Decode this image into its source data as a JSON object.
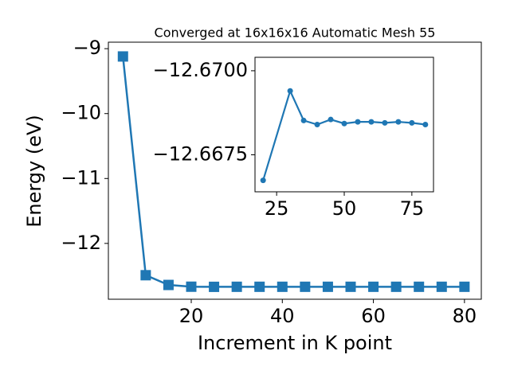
{
  "chart_data": [
    {
      "type": "line",
      "title": "Converged at 16x16x16 Automatic Mesh 55",
      "x_label": "Increment in K point",
      "y_label": "Energy (eV)",
      "x": [
        5,
        10,
        15,
        20,
        25,
        30,
        35,
        40,
        45,
        50,
        55,
        60,
        65,
        70,
        75,
        80
      ],
      "series": [
        {
          "color": "#1f77b4",
          "marker": "square",
          "values": [
            -9.12,
            -12.49,
            -12.64,
            -12.667,
            -12.669,
            -12.668,
            -12.668,
            -12.668,
            -12.668,
            -12.668,
            -12.668,
            -12.668,
            -12.668,
            -12.668,
            -12.668,
            -12.668
          ]
        }
      ],
      "xlim": [
        1.8,
        83.7
      ],
      "ylim": [
        -12.86,
        -8.9
      ],
      "xticks": [
        20,
        40,
        60,
        80
      ],
      "yticks": [
        {
          "value": -12,
          "label": "−12"
        },
        {
          "value": -11,
          "label": "−11"
        },
        {
          "value": -10,
          "label": "−10"
        },
        {
          "value": -9,
          "label": "−9"
        }
      ]
    },
    {
      "type": "line",
      "x": [
        20,
        30,
        35,
        40,
        45,
        50,
        55,
        60,
        65,
        70,
        75,
        80
      ],
      "series": [
        {
          "color": "#1f77b4",
          "marker": "circle",
          "values": [
            -12.66674,
            -12.6694,
            -12.66852,
            -12.6684,
            -12.66855,
            -12.66843,
            -12.66848,
            -12.66848,
            -12.66845,
            -12.66848,
            -12.66845,
            -12.6684
          ]
        }
      ],
      "xlim": [
        17,
        83
      ],
      "ylim": [
        -12.6664,
        -12.6704
      ],
      "xticks": [
        25,
        50,
        75
      ],
      "yticks": [
        {
          "value": -12.6675,
          "label": "−12.6675"
        },
        {
          "value": -12.67,
          "label": "−12.6700"
        }
      ]
    }
  ]
}
